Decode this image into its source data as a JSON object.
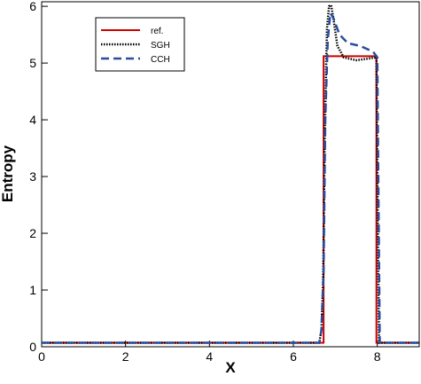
{
  "chart_data": {
    "type": "line",
    "x_label": "X",
    "y_label": "Entropy",
    "xlim": [
      0,
      9
    ],
    "ylim": [
      0,
      6.08
    ],
    "xticks": [
      0,
      2,
      4,
      6,
      8
    ],
    "yticks": [
      0,
      1,
      2,
      3,
      4,
      5,
      6
    ],
    "legend": "upper-left",
    "series": [
      {
        "name": "ref.",
        "color": "#cc0000",
        "style": "solid",
        "x": [
          0,
          6.72,
          6.72,
          7.98,
          7.98,
          9
        ],
        "values": [
          0.07,
          0.07,
          5.12,
          5.12,
          0.07,
          0.07
        ]
      },
      {
        "name": "SGH",
        "color": "#000000",
        "style": "dotted",
        "x": [
          0,
          6.62,
          6.67,
          6.71,
          6.75,
          6.8,
          6.85,
          6.9,
          6.95,
          7.05,
          7.2,
          7.5,
          7.8,
          7.98,
          8.01,
          8.04,
          9
        ],
        "values": [
          0.07,
          0.07,
          0.3,
          1.2,
          3.8,
          5.6,
          6.0,
          6.02,
          5.8,
          5.3,
          5.1,
          5.05,
          5.08,
          5.1,
          2.5,
          0.07,
          0.07
        ]
      },
      {
        "name": "CCH",
        "color": "#2a4d9c",
        "style": "dashed",
        "x": [
          0,
          6.62,
          6.67,
          6.72,
          6.76,
          6.82,
          6.88,
          6.95,
          7.1,
          7.3,
          7.6,
          7.9,
          8.0,
          8.03,
          8.06,
          9
        ],
        "values": [
          0.07,
          0.07,
          0.3,
          1.3,
          4.0,
          5.4,
          5.88,
          5.8,
          5.5,
          5.35,
          5.3,
          5.2,
          5.1,
          2.5,
          0.07,
          0.07
        ]
      }
    ]
  }
}
